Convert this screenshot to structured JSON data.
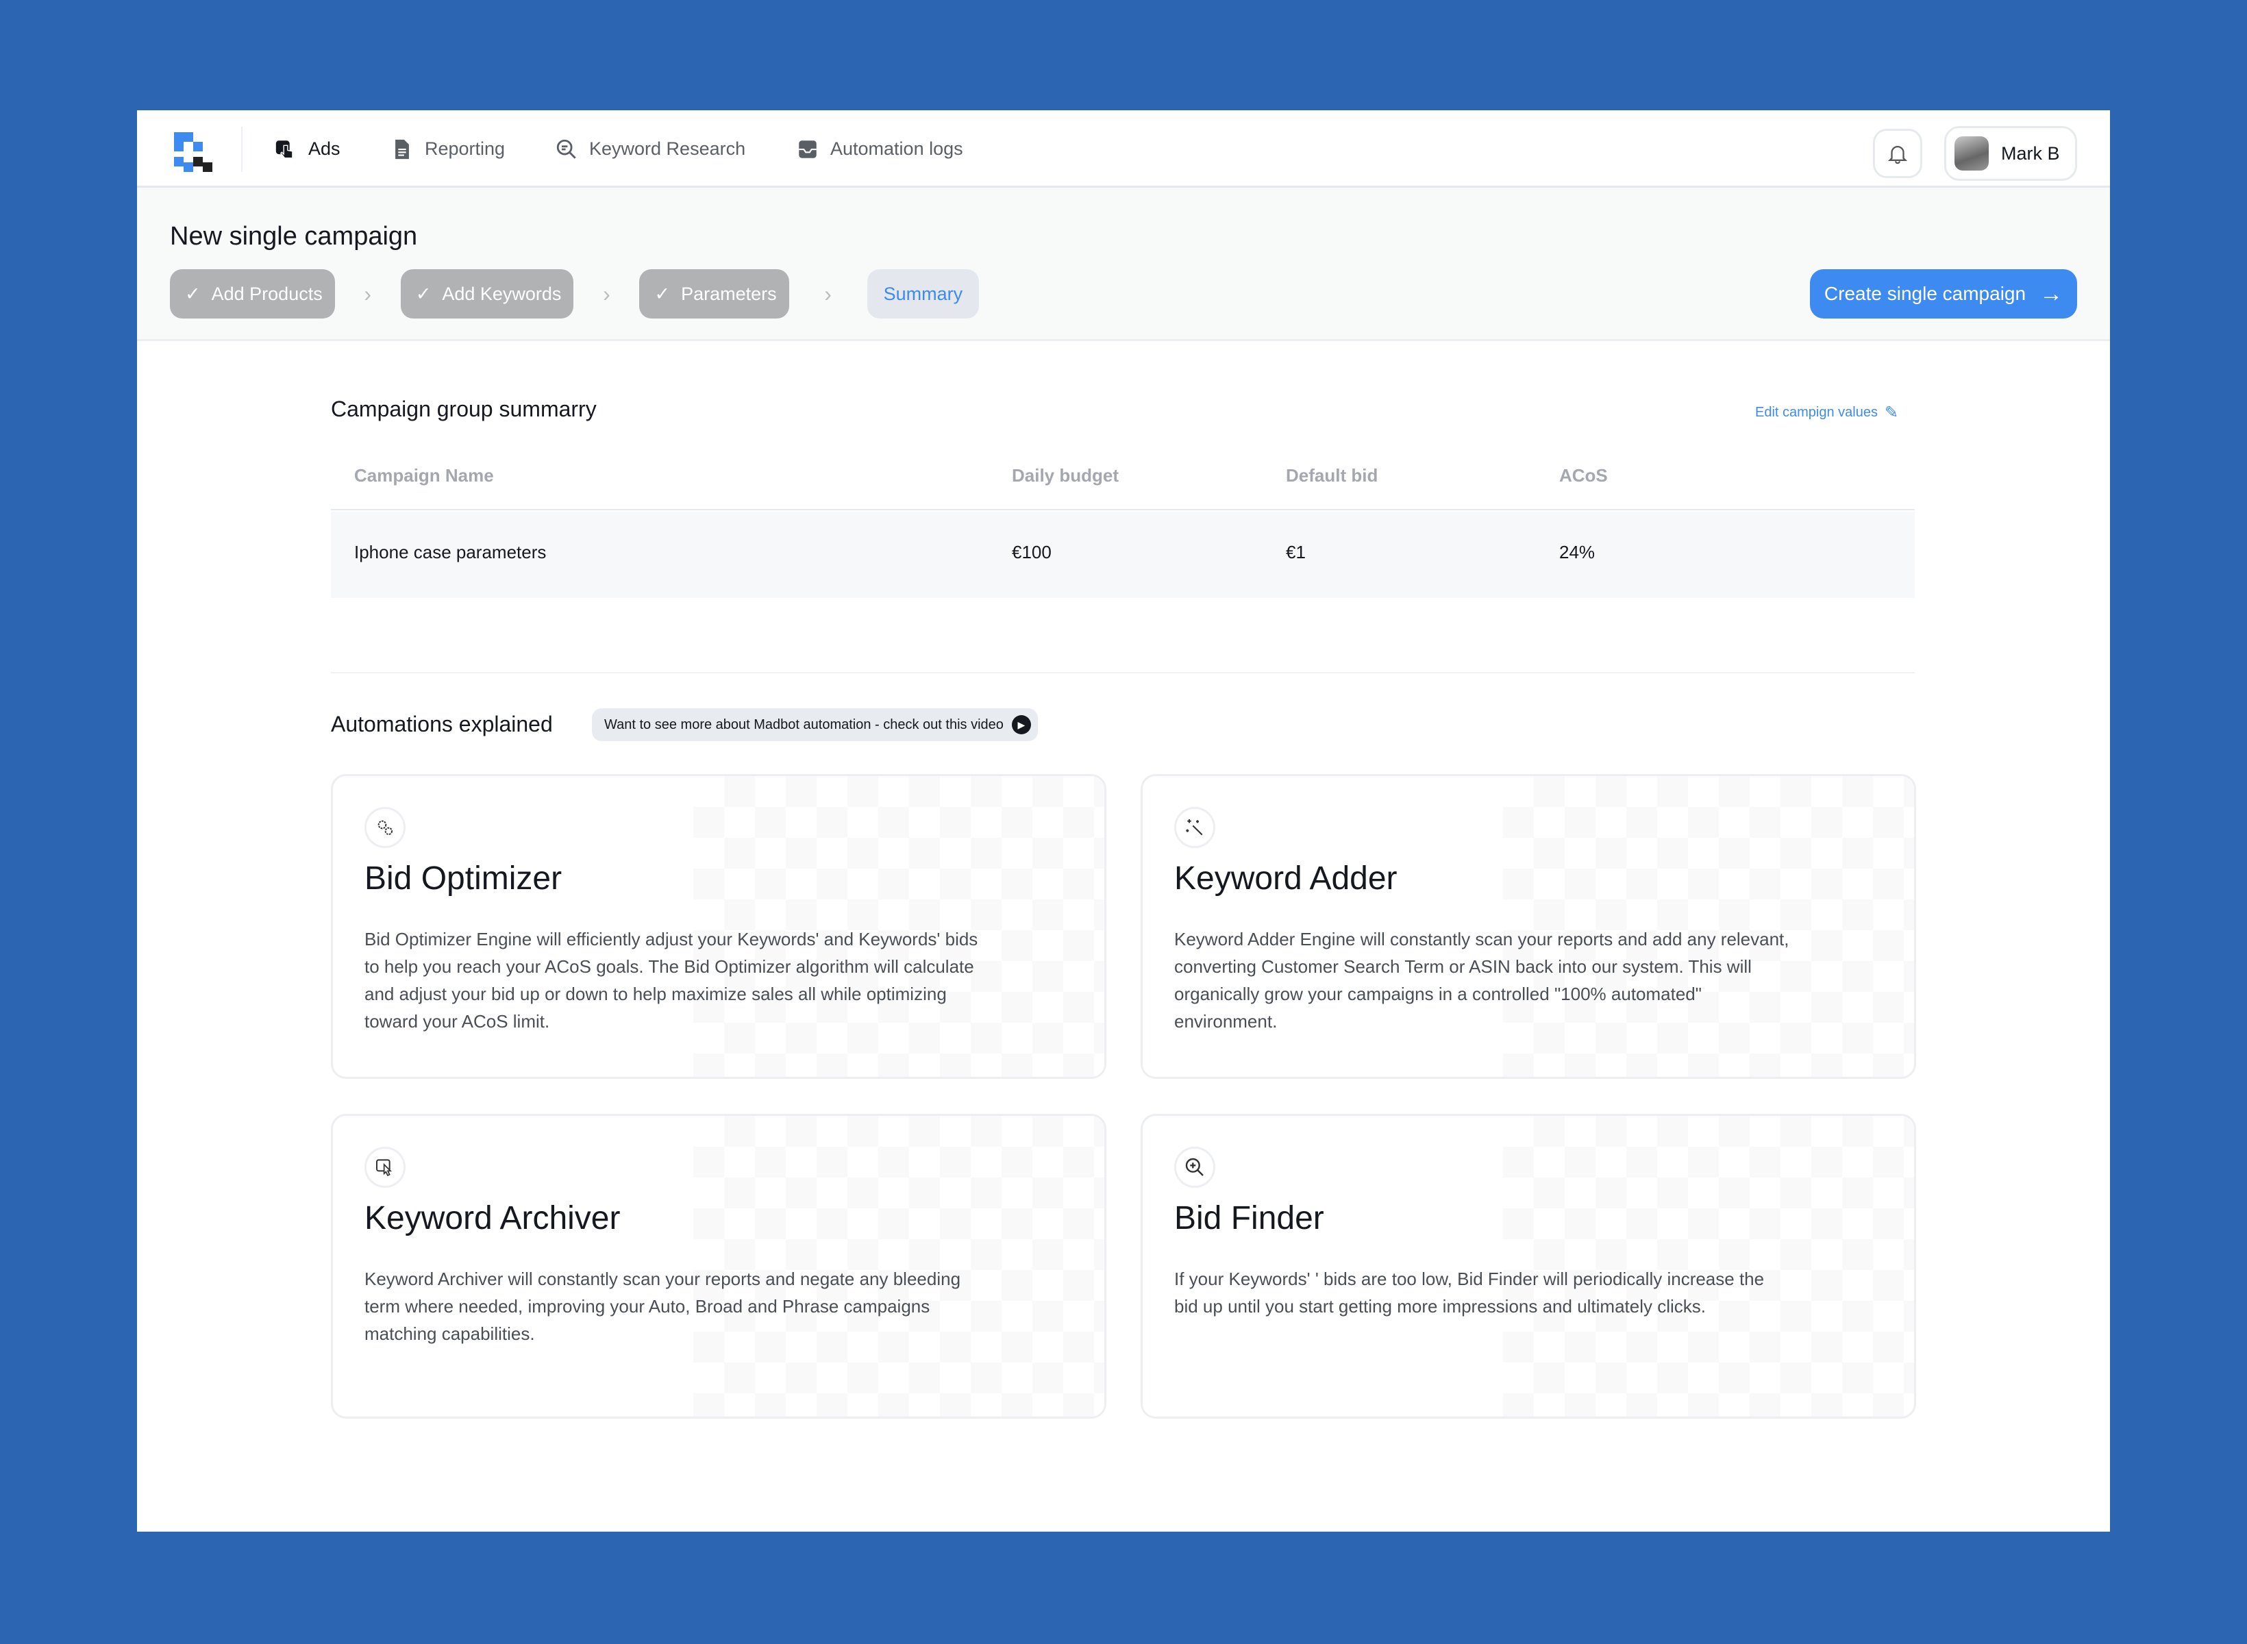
{
  "nav": {
    "items": [
      {
        "label": "Ads",
        "icon": "hand-pointer-icon"
      },
      {
        "label": "Reporting",
        "icon": "document-icon"
      },
      {
        "label": "Keyword Research",
        "icon": "search-icon"
      },
      {
        "label": "Automation logs",
        "icon": "inbox-icon"
      }
    ],
    "user": "Mark B"
  },
  "page": {
    "title": "New single campaign",
    "steps": [
      "Add Products",
      "Add Keywords",
      "Parameters",
      "Summary"
    ],
    "current_step": "Summary",
    "cta": "Create single campaign"
  },
  "summary": {
    "title": "Campaign group summarry",
    "edit": "Edit campign values",
    "columns": [
      "Campaign Name",
      "Daily budget",
      "Default bid",
      "ACoS"
    ],
    "row": [
      "Iphone case parameters",
      "€100",
      "€1",
      "24%"
    ]
  },
  "automations": {
    "title": "Automations explained",
    "video": "Want to see more about Madbot automation - check out this video",
    "cards": [
      {
        "title": "Bid Optimizer",
        "icon": "gears-icon",
        "text": "Bid Optimizer Engine will efficiently adjust your Keywords' and Keywords' bids to help you reach your ACoS goals. The Bid Optimizer algorithm will calculate and adjust your bid up or down to help maximize sales all while optimizing toward your ACoS limit."
      },
      {
        "title": "Keyword Adder",
        "icon": "magic-wand-icon",
        "text": "Keyword Adder Engine will constantly scan your reports and add any relevant, converting Customer Search Term or ASIN back into our system. This will organically grow your campaigns in a controlled \"100% automated\" environment."
      },
      {
        "title": "Keyword Archiver",
        "icon": "archive-cursor-icon",
        "text": "Keyword Archiver will constantly scan your reports and negate any bleeding term where needed, improving your Auto, Broad and Phrase campaigns matching capabilities."
      },
      {
        "title": "Bid Finder",
        "icon": "zoom-in-icon",
        "text": "If your Keywords' ' bids are too low, Bid Finder will periodically increase the bid up until you start getting more impressions and ultimately clicks."
      }
    ]
  },
  "colors": {
    "background": "#2c66b3",
    "accent": "#3d8af0",
    "step_done": "#b1b2b4"
  }
}
